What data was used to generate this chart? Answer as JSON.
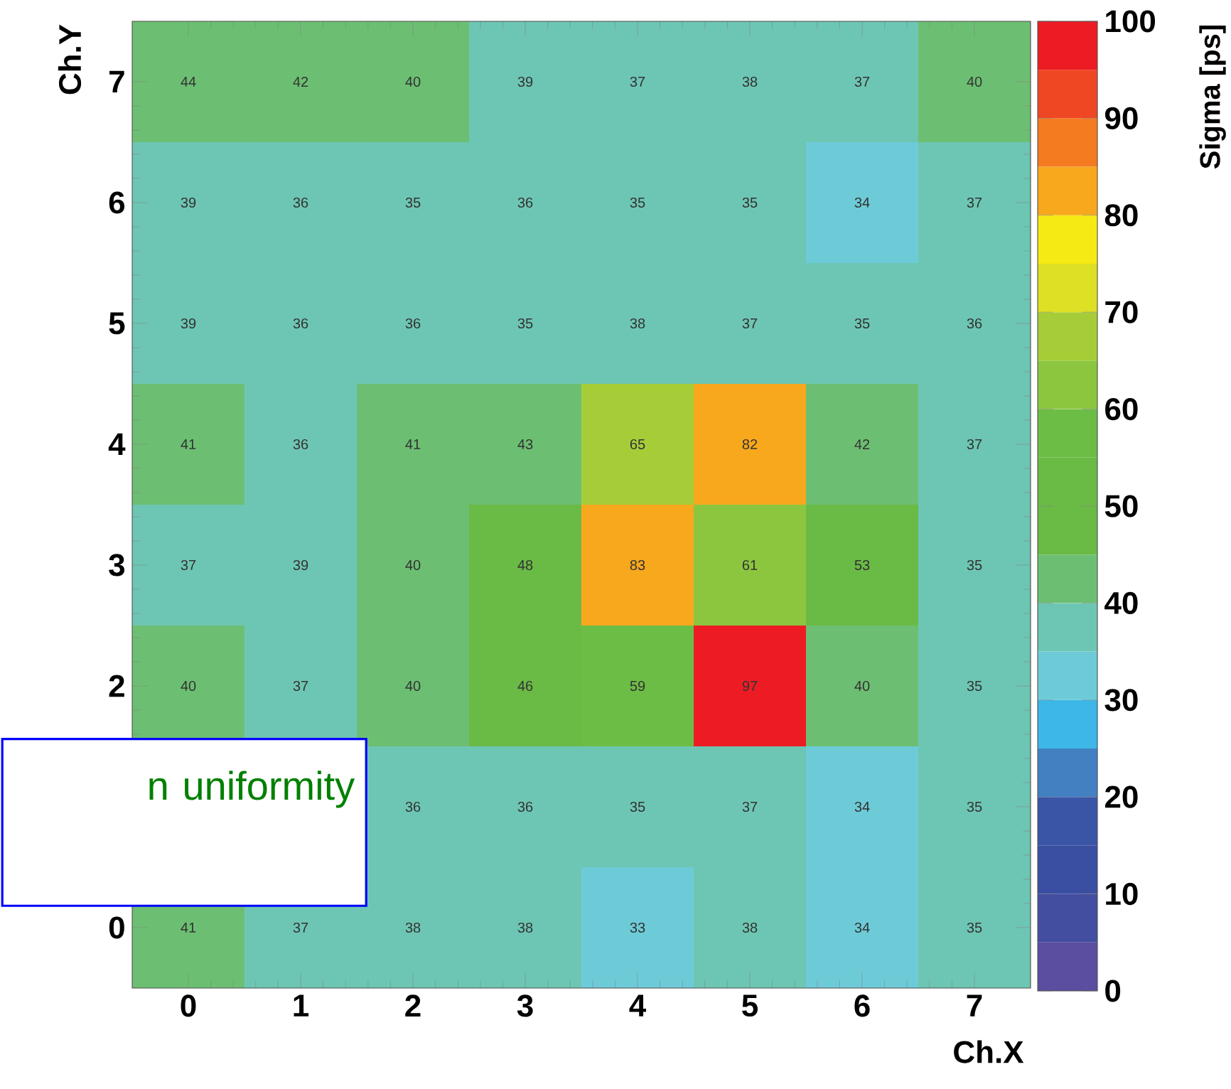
{
  "chart_data": {
    "type": "heatmap",
    "xlabel": "Ch.X",
    "ylabel": "Ch.Y",
    "clabel": "Sigma [ps]",
    "categories": [
      "0",
      "1",
      "2",
      "3",
      "4",
      "5",
      "6",
      "7"
    ],
    "y_categories": [
      "7",
      "6",
      "5",
      "4",
      "3",
      "2",
      null,
      "0"
    ],
    "cells": [
      [
        44,
        42,
        40,
        39,
        37,
        38,
        37,
        40
      ],
      [
        39,
        36,
        35,
        36,
        35,
        35,
        34,
        37
      ],
      [
        39,
        36,
        36,
        35,
        38,
        37,
        35,
        36
      ],
      [
        41,
        36,
        41,
        43,
        65,
        82,
        42,
        37
      ],
      [
        37,
        39,
        40,
        48,
        83,
        61,
        53,
        35
      ],
      [
        40,
        37,
        40,
        46,
        59,
        97,
        40,
        35
      ],
      [
        null,
        null,
        36,
        36,
        35,
        37,
        34,
        35
      ],
      [
        41,
        37,
        38,
        38,
        33,
        38,
        34,
        35
      ]
    ],
    "clim": [
      0,
      100
    ],
    "cticks": [
      0,
      10,
      20,
      30,
      40,
      50,
      60,
      70,
      80,
      90,
      100
    ],
    "data_labels": true,
    "annotations": [
      "n uniformity"
    ]
  }
}
